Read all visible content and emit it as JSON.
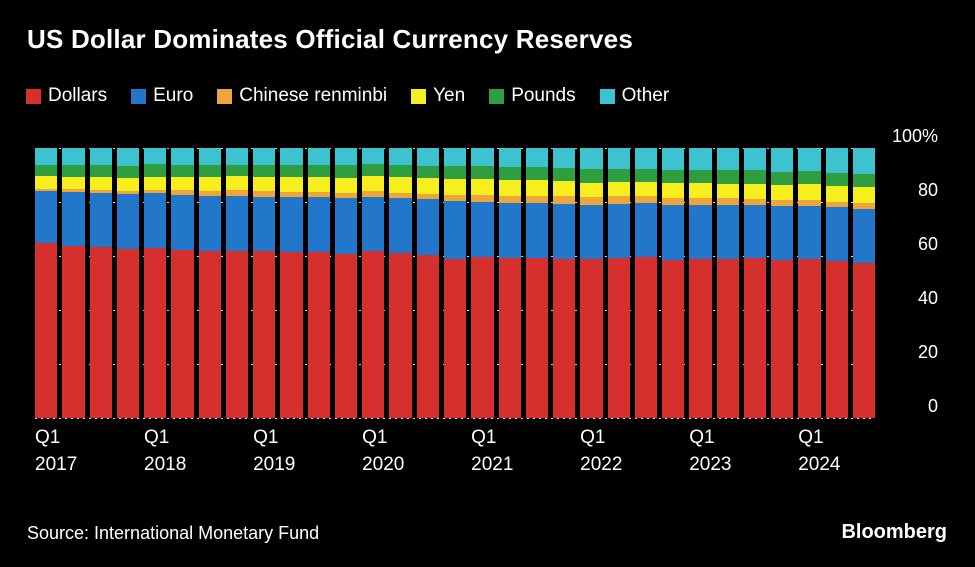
{
  "title": "US Dollar Dominates Official Currency Reserves",
  "legend": {
    "items": [
      {
        "label": "Dollars",
        "color": "#d5302d"
      },
      {
        "label": "Euro",
        "color": "#2277cb"
      },
      {
        "label": "Chinese renminbi",
        "color": "#eda63a"
      },
      {
        "label": "Yen",
        "color": "#f6ef1d"
      },
      {
        "label": "Pounds",
        "color": "#2f9e41"
      },
      {
        "label": "Other",
        "color": "#3cc3cf"
      }
    ]
  },
  "chart_data": {
    "type": "bar",
    "subtype": "stacked-100-percent",
    "unit": "%",
    "background": "#000000",
    "gridlines": "dotted",
    "legend_position": "top",
    "y_axis_side": "right",
    "ylim": [
      0,
      100
    ],
    "y_ticks": [
      0,
      20,
      40,
      60,
      80,
      100
    ],
    "y_tick_labels": [
      "0",
      "20",
      "40",
      "60",
      "80",
      "100%"
    ],
    "categories": [
      "2017 Q1",
      "2017 Q2",
      "2017 Q3",
      "2017 Q4",
      "2018 Q1",
      "2018 Q2",
      "2018 Q3",
      "2018 Q4",
      "2019 Q1",
      "2019 Q2",
      "2019 Q3",
      "2019 Q4",
      "2020 Q1",
      "2020 Q2",
      "2020 Q3",
      "2020 Q4",
      "2021 Q1",
      "2021 Q2",
      "2021 Q3",
      "2021 Q4",
      "2022 Q1",
      "2022 Q2",
      "2022 Q3",
      "2022 Q4",
      "2023 Q1",
      "2023 Q2",
      "2023 Q3",
      "2023 Q4",
      "2024 Q1",
      "2024 Q2",
      "2024 Q3"
    ],
    "x_ticks": [
      {
        "index": 0,
        "quarter": "Q1",
        "year": "2017"
      },
      {
        "index": 4,
        "quarter": "Q1",
        "year": "2018"
      },
      {
        "index": 8,
        "quarter": "Q1",
        "year": "2019"
      },
      {
        "index": 12,
        "quarter": "Q1",
        "year": "2020"
      },
      {
        "index": 16,
        "quarter": "Q1",
        "year": "2021"
      },
      {
        "index": 20,
        "quarter": "Q1",
        "year": "2022"
      },
      {
        "index": 24,
        "quarter": "Q1",
        "year": "2023"
      },
      {
        "index": 28,
        "quarter": "Q1",
        "year": "2024"
      }
    ],
    "stack_order_bottom_to_top": [
      "Dollars",
      "Euro",
      "Chinese renminbi",
      "Yen",
      "Pounds",
      "Other"
    ],
    "series": [
      {
        "name": "Dollars",
        "color": "#d5302d",
        "values": [
          64.7,
          63.8,
          63.5,
          62.7,
          62.8,
          62.4,
          61.9,
          61.7,
          61.8,
          61.4,
          61.6,
          60.9,
          61.8,
          61.3,
          60.5,
          58.9,
          59.5,
          59.2,
          59.2,
          58.8,
          58.8,
          59.4,
          59.8,
          58.5,
          59.0,
          58.9,
          59.2,
          58.4,
          58.9,
          58.2,
          57.4
        ]
      },
      {
        "name": "Euro",
        "color": "#2277cb",
        "values": [
          19.2,
          19.9,
          20.0,
          20.2,
          20.4,
          20.3,
          20.5,
          20.7,
          20.2,
          20.4,
          20.2,
          20.5,
          20.1,
          20.1,
          20.5,
          21.3,
          20.6,
          20.5,
          20.5,
          20.6,
          20.0,
          19.8,
          19.7,
          20.4,
          19.8,
          20.0,
          19.7,
          20.0,
          19.8,
          19.8,
          20.0
        ]
      },
      {
        "name": "Chinese renminbi",
        "color": "#eda63a",
        "values": [
          1.1,
          1.1,
          1.1,
          1.2,
          1.4,
          1.8,
          1.8,
          1.9,
          2.0,
          2.0,
          2.0,
          1.9,
          2.0,
          2.1,
          2.1,
          2.3,
          2.5,
          2.6,
          2.7,
          2.8,
          2.9,
          2.9,
          2.8,
          2.7,
          2.6,
          2.5,
          2.4,
          2.3,
          2.2,
          2.1,
          2.2
        ]
      },
      {
        "name": "Yen",
        "color": "#f6ef1d",
        "values": [
          4.6,
          4.6,
          4.5,
          4.9,
          4.8,
          4.9,
          5.0,
          5.2,
          5.3,
          5.4,
          5.6,
          5.7,
          5.8,
          5.7,
          5.9,
          6.0,
          5.9,
          5.8,
          5.8,
          5.5,
          5.4,
          5.2,
          5.3,
          5.5,
          5.5,
          5.4,
          5.5,
          5.7,
          5.7,
          5.8,
          5.8
        ]
      },
      {
        "name": "Pounds",
        "color": "#2f9e41",
        "values": [
          4.3,
          4.4,
          4.5,
          4.5,
          4.7,
          4.5,
          4.5,
          4.4,
          4.5,
          4.4,
          4.5,
          4.6,
          4.4,
          4.5,
          4.5,
          4.7,
          4.7,
          4.7,
          4.8,
          4.8,
          5.0,
          4.9,
          4.6,
          4.9,
          4.9,
          4.9,
          4.9,
          4.8,
          4.9,
          5.0,
          4.9
        ]
      },
      {
        "name": "Other",
        "color": "#3cc3cf",
        "values": [
          6.1,
          6.2,
          6.4,
          6.5,
          5.9,
          6.1,
          6.3,
          6.1,
          6.2,
          6.4,
          6.1,
          6.4,
          5.9,
          6.3,
          6.5,
          6.8,
          6.8,
          7.2,
          7.0,
          7.5,
          7.9,
          7.8,
          7.8,
          8.0,
          8.2,
          8.3,
          8.3,
          8.8,
          8.5,
          9.1,
          9.7
        ]
      }
    ]
  },
  "footer": {
    "source": "Source: International Monetary Fund",
    "brand": "Bloomberg"
  },
  "colors": {
    "background": "#000000",
    "text": "#ffffff",
    "gridline": "#d9d9d9"
  }
}
